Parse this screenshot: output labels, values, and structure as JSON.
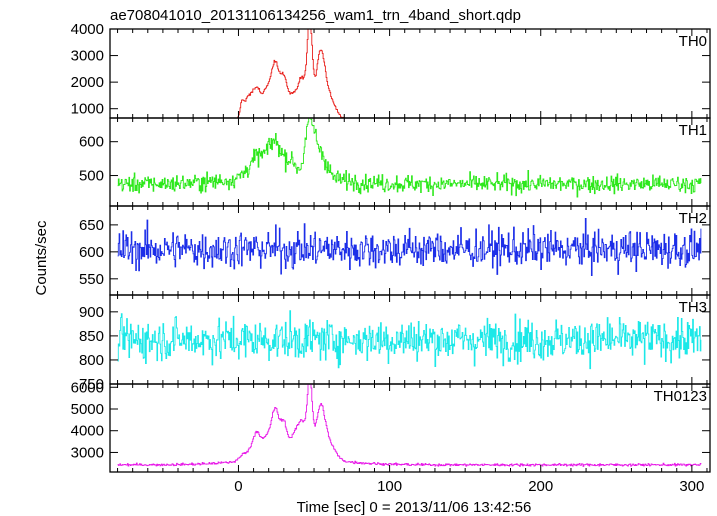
{
  "chart_data": {
    "type": "line",
    "title": "ae708041010_20131106134256_wam1_trn_4band_short.qdp",
    "xlabel": "Time [sec] 0 = 2013/11/06 13:42:56",
    "ylabel": "Counts/sec",
    "xlim": [
      -85,
      312
    ],
    "x_ticks": [
      0,
      100,
      200,
      300
    ],
    "panels": [
      {
        "name": "TH0",
        "color": "#e8201c",
        "ylim": [
          650,
          4000
        ],
        "y_ticks": [
          1000,
          2000,
          3000,
          4000
        ],
        "baseline": 470,
        "noise": 22,
        "peaks": [
          {
            "t": 2,
            "w": 1.2,
            "a": 500
          },
          {
            "t": 6,
            "w": 2.5,
            "a": 700
          },
          {
            "t": 12,
            "w": 3,
            "a": 1100
          },
          {
            "t": 18,
            "w": 2,
            "a": 700
          },
          {
            "t": 24,
            "w": 3,
            "a": 2100
          },
          {
            "t": 30,
            "w": 2,
            "a": 1100
          },
          {
            "t": 35,
            "w": 3,
            "a": 700
          },
          {
            "t": 42,
            "w": 3,
            "a": 1400
          },
          {
            "t": 47,
            "w": 1.6,
            "a": 3300
          },
          {
            "t": 54,
            "w": 3,
            "a": 2300
          },
          {
            "t": 60,
            "w": 4,
            "a": 700
          },
          {
            "t": 35,
            "w": 30,
            "a": 250
          }
        ]
      },
      {
        "name": "TH1",
        "color": "#2ee81c",
        "ylim": [
          410,
          670
        ],
        "y_ticks": [
          500,
          600
        ],
        "baseline": 475,
        "noise": 18,
        "peaks": [
          {
            "t": 13,
            "w": 6,
            "a": 60
          },
          {
            "t": 24,
            "w": 4,
            "a": 90
          },
          {
            "t": 34,
            "w": 4,
            "a": 45
          },
          {
            "t": 47,
            "w": 3,
            "a": 150
          },
          {
            "t": 54,
            "w": 4,
            "a": 75
          },
          {
            "t": 30,
            "w": 30,
            "a": 25
          }
        ]
      },
      {
        "name": "TH2",
        "color": "#1c2ee8",
        "ylim": [
          520,
          685
        ],
        "y_ticks": [
          550,
          600,
          650
        ],
        "baseline": 605,
        "noise": 25,
        "peaks": []
      },
      {
        "name": "TH3",
        "color": "#1ce8e8",
        "ylim": [
          750,
          935
        ],
        "y_ticks": [
          750,
          800,
          850,
          900
        ],
        "baseline": 842,
        "noise": 30,
        "peaks": []
      },
      {
        "name": "TH0123",
        "color": "#e81ce8",
        "ylim": [
          2100,
          6150
        ],
        "y_ticks": [
          3000,
          4000,
          5000,
          6000
        ],
        "baseline": 2430,
        "noise": 40,
        "peaks": [
          {
            "t": 4,
            "w": 3,
            "a": 350
          },
          {
            "t": 12,
            "w": 3,
            "a": 1300
          },
          {
            "t": 18,
            "w": 2,
            "a": 600
          },
          {
            "t": 24,
            "w": 3,
            "a": 2300
          },
          {
            "t": 30,
            "w": 2,
            "a": 1300
          },
          {
            "t": 36,
            "w": 3,
            "a": 900
          },
          {
            "t": 42,
            "w": 3,
            "a": 1600
          },
          {
            "t": 47,
            "w": 1.6,
            "a": 3300
          },
          {
            "t": 54,
            "w": 3,
            "a": 2300
          },
          {
            "t": 60,
            "w": 4,
            "a": 700
          },
          {
            "t": 35,
            "w": 30,
            "a": 300
          }
        ]
      }
    ]
  }
}
